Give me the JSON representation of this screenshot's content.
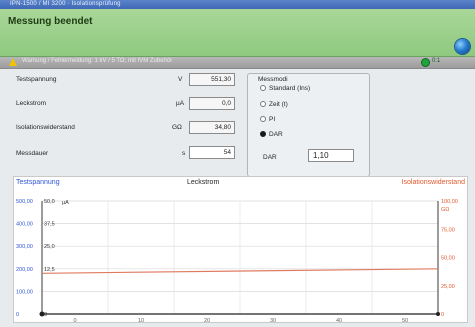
{
  "window": {
    "title": "IPN-1500 / MI 3200 · Isolationsprüfung"
  },
  "header": {
    "title": "Messung beendet",
    "globe_icon": "globe-icon"
  },
  "warning": {
    "text": "Warnung / Fehlermeldung: 1 kV / 5 TΩ; mit IVM Zubehör",
    "status_value": "0:1"
  },
  "measurements": {
    "rows": [
      {
        "label": "Testspannung",
        "unit": "V",
        "value": "551,30"
      },
      {
        "label": "Leckstrom",
        "unit": "µA",
        "value": "0,0"
      },
      {
        "label": "Isolationswiderstand",
        "unit": "GΩ",
        "value": "34,80"
      },
      {
        "label": "Messdauer",
        "unit": "s",
        "value": "54"
      }
    ]
  },
  "modes": {
    "caption": "Messmodi",
    "options": [
      "Standard (Ins)",
      "Zeit (t)",
      "PI",
      "DAR"
    ],
    "selected": "DAR"
  },
  "dar": {
    "label": "DAR",
    "value": "1,10"
  },
  "chart_data": {
    "type": "line",
    "title": "Leckstrom",
    "left_title": "Testspannung",
    "right_title": "Isolationswiderstand",
    "left_axis_v": {
      "unit": "V",
      "ticks": [
        "0",
        "100,00",
        "200,00",
        "300,00",
        "400,00",
        "500,00"
      ],
      "ylim": [
        0,
        500
      ]
    },
    "left_axis_ua": {
      "unit": "µA",
      "ticks": [
        "0",
        "12,5",
        "25,0",
        "37,5",
        "50,0"
      ],
      "ylim": [
        0,
        50
      ]
    },
    "right_axis_gohm": {
      "unit": "GΩ",
      "ticks": [
        "0",
        "25,00",
        "50,00",
        "75,00",
        "100,00"
      ],
      "ylim": [
        0,
        100
      ]
    },
    "x": {
      "ticks": [
        "0",
        "10",
        "20",
        "30",
        "40",
        "50"
      ],
      "xlim": [
        0,
        60
      ]
    },
    "series": [
      {
        "name": "Isolationswiderstand",
        "color": "#e07a5f",
        "axis": "right",
        "x": [
          0,
          60
        ],
        "y": [
          36.0,
          40.0
        ]
      },
      {
        "name": "Leckstrom",
        "color": "#202020",
        "axis": "left_ua",
        "x": [
          0,
          60
        ],
        "y": [
          0,
          0
        ]
      }
    ],
    "colors": {
      "left": "#2f56d6",
      "right": "#e05a30"
    }
  }
}
